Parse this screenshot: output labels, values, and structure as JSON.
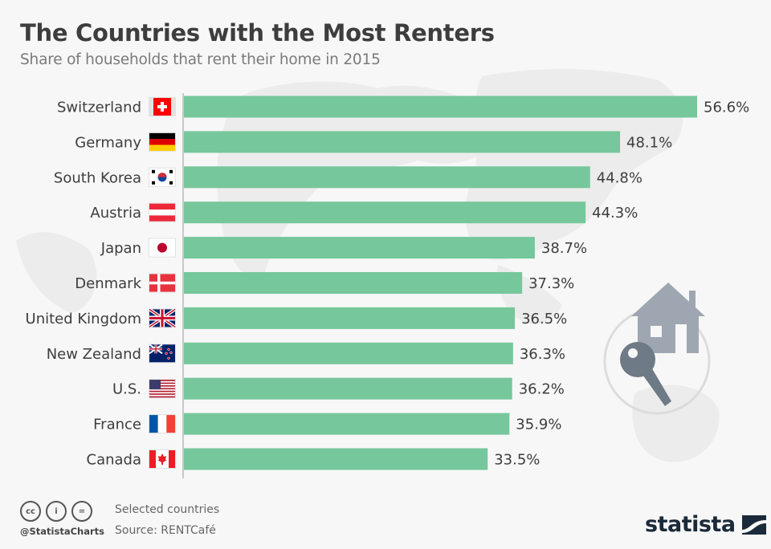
{
  "header": {
    "title": "The Countries with the Most Renters",
    "subtitle": "Share of households that rent their home in 2015"
  },
  "chart_data": {
    "type": "bar",
    "orientation": "horizontal",
    "title": "The Countries with the Most Renters",
    "subtitle": "Share of households that rent their home in 2015",
    "xlabel": "",
    "ylabel": "",
    "unit": "%",
    "xlim": [
      0,
      56.6
    ],
    "grid": false,
    "categories": [
      "Switzerland",
      "Germany",
      "South Korea",
      "Austria",
      "Japan",
      "Denmark",
      "United Kingdom",
      "New Zealand",
      "U.S.",
      "France",
      "Canada"
    ],
    "values": [
      56.6,
      48.1,
      44.8,
      44.3,
      38.7,
      37.3,
      36.5,
      36.3,
      36.2,
      35.9,
      33.5
    ],
    "value_labels": [
      "56.6%",
      "48.1%",
      "44.8%",
      "44.3%",
      "38.7%",
      "37.3%",
      "36.5%",
      "36.3%",
      "36.2%",
      "35.9%",
      "33.5%"
    ],
    "flags": [
      "switzerland-flag",
      "germany-flag",
      "south-korea-flag",
      "austria-flag",
      "japan-flag",
      "denmark-flag",
      "uk-flag",
      "new-zealand-flag",
      "us-flag",
      "france-flag",
      "canada-flag"
    ],
    "bar_color": "#76c79b"
  },
  "footer": {
    "note": "Selected countries",
    "source": "Source: RENTCafé",
    "handle": "@StatistaCharts",
    "license_icons": [
      "cc-icon",
      "by-icon",
      "nd-icon"
    ],
    "license_glyphs": [
      "cc",
      "i",
      "="
    ],
    "brand": "statista"
  },
  "colors": {
    "bar": "#76c79b",
    "title": "#3d3d3d",
    "subtitle": "#7a7a7a",
    "brand": "#1a2a3a",
    "illustration": "#9ea7b1",
    "key": "#6e7a86"
  }
}
